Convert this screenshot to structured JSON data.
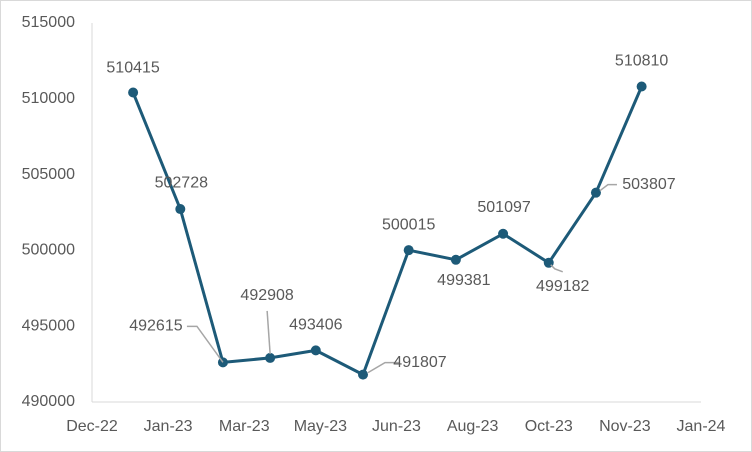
{
  "chart_data": {
    "type": "line",
    "x": [
      44927,
      44958,
      44986,
      45017,
      45047,
      45078,
      45108,
      45139,
      45170,
      45200,
      45231,
      45261
    ],
    "series": [
      {
        "color": "#1d5a78",
        "values": [
          510415,
          502728,
          492615,
          492908,
          493406,
          491807,
          500015,
          499381,
          501097,
          499182,
          503807,
          510810
        ]
      }
    ],
    "xlim": [
      44900,
      45300
    ],
    "xticks": [
      {
        "value": 44900,
        "label": "Dec-22"
      },
      {
        "value": 44950,
        "label": "Jan-23"
      },
      {
        "value": 45000,
        "label": "Mar-23"
      },
      {
        "value": 45050,
        "label": "May-23"
      },
      {
        "value": 45100,
        "label": "Jun-23"
      },
      {
        "value": 45150,
        "label": "Aug-23"
      },
      {
        "value": 45200,
        "label": "Oct-23"
      },
      {
        "value": 45250,
        "label": "Nov-23"
      },
      {
        "value": 45300,
        "label": "Jan-24"
      }
    ],
    "ylim": [
      490000,
      515000
    ],
    "yticks": [
      490000,
      495000,
      500000,
      505000,
      510000,
      515000
    ],
    "grid": false
  }
}
